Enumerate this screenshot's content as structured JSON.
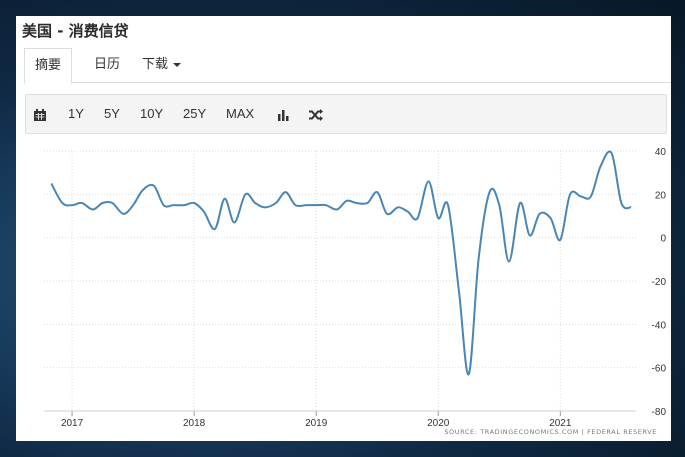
{
  "title": "美国 - 消费信贷",
  "tabs": [
    {
      "label": "摘要",
      "active": true
    },
    {
      "label": "日历",
      "active": false
    },
    {
      "label": "下载",
      "active": false
    }
  ],
  "toolbar": {
    "calendar_icon": "calendar-icon",
    "ranges": [
      "1Y",
      "5Y",
      "10Y",
      "25Y",
      "MAX"
    ],
    "bar_chart_icon": "bar-chart-icon",
    "shuffle_icon": "shuffle-icon"
  },
  "source": "SOURCE: TRADINGECONOMICS.COM  |  FEDERAL RESERVE",
  "colors": {
    "line": "#4a86b5",
    "grid": "#dddddd"
  },
  "chart_data": {
    "type": "line",
    "title": "",
    "xlabel": "",
    "ylabel": "",
    "ylim": [
      -80,
      40
    ],
    "yticks": [
      40,
      20,
      0,
      -20,
      -40,
      -60,
      -80
    ],
    "xticks": [
      {
        "label": "2017",
        "x": 2017.0
      },
      {
        "label": "2018",
        "x": 2018.0
      },
      {
        "label": "2019",
        "x": 2019.0
      },
      {
        "label": "2020",
        "x": 2020.0
      },
      {
        "label": "2021",
        "x": 2021.0
      }
    ],
    "grid": true,
    "series": [
      {
        "points": [
          [
            2016.83,
            25
          ],
          [
            2016.92,
            16
          ],
          [
            2017.0,
            15
          ],
          [
            2017.08,
            16
          ],
          [
            2017.17,
            13
          ],
          [
            2017.25,
            16
          ],
          [
            2017.33,
            16
          ],
          [
            2017.42,
            11
          ],
          [
            2017.5,
            15
          ],
          [
            2017.58,
            22
          ],
          [
            2017.67,
            24
          ],
          [
            2017.75,
            15
          ],
          [
            2017.83,
            15
          ],
          [
            2017.92,
            15
          ],
          [
            2018.0,
            16
          ],
          [
            2018.08,
            12
          ],
          [
            2018.17,
            4
          ],
          [
            2018.25,
            18
          ],
          [
            2018.33,
            7
          ],
          [
            2018.42,
            20
          ],
          [
            2018.5,
            16
          ],
          [
            2018.58,
            14
          ],
          [
            2018.67,
            16
          ],
          [
            2018.75,
            21
          ],
          [
            2018.83,
            15
          ],
          [
            2018.92,
            15
          ],
          [
            2019.0,
            15
          ],
          [
            2019.08,
            15
          ],
          [
            2019.17,
            13
          ],
          [
            2019.25,
            17
          ],
          [
            2019.33,
            16
          ],
          [
            2019.42,
            16
          ],
          [
            2019.5,
            21
          ],
          [
            2019.58,
            11
          ],
          [
            2019.67,
            14
          ],
          [
            2019.75,
            12
          ],
          [
            2019.83,
            9
          ],
          [
            2019.92,
            26
          ],
          [
            2020.0,
            9
          ],
          [
            2020.08,
            15
          ],
          [
            2020.17,
            -25
          ],
          [
            2020.25,
            -63
          ],
          [
            2020.33,
            -10
          ],
          [
            2020.42,
            21
          ],
          [
            2020.5,
            15
          ],
          [
            2020.58,
            -11
          ],
          [
            2020.67,
            16
          ],
          [
            2020.75,
            1
          ],
          [
            2020.83,
            11
          ],
          [
            2020.92,
            9
          ],
          [
            2021.0,
            -1
          ],
          [
            2021.08,
            20
          ],
          [
            2021.17,
            19
          ],
          [
            2021.25,
            19
          ],
          [
            2021.33,
            33
          ],
          [
            2021.42,
            39
          ],
          [
            2021.5,
            16
          ],
          [
            2021.58,
            14
          ]
        ]
      }
    ]
  }
}
